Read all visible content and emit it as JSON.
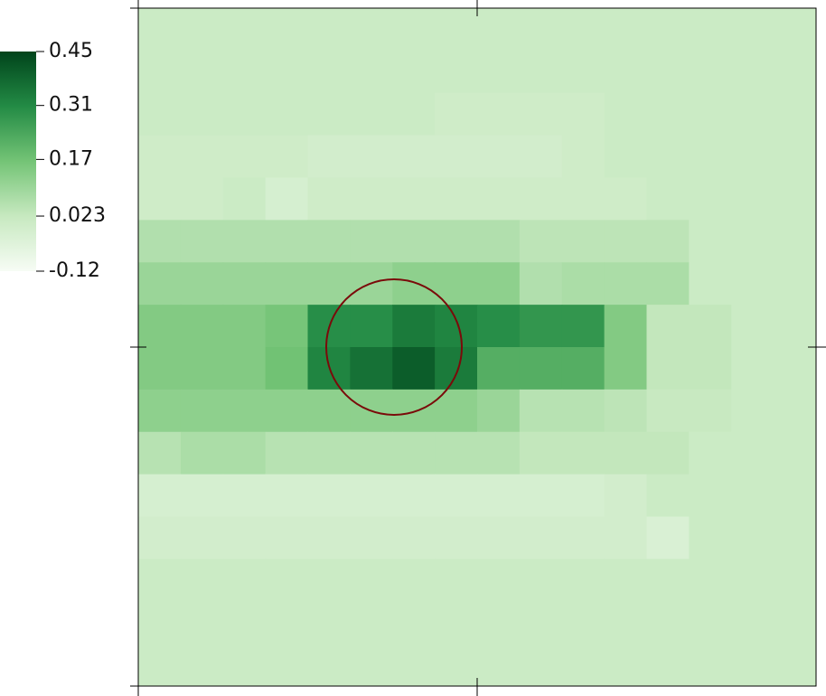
{
  "chart_data": {
    "type": "heatmap",
    "colorscale": [
      "#f7fcf5",
      "#c7e9c0",
      "#74c476",
      "#238b45",
      "#00441b"
    ],
    "clim": [
      -0.12,
      0.45
    ],
    "cticks": [
      0.45,
      0.31,
      0.17,
      0.023,
      -0.12
    ],
    "z": [
      [
        0.01,
        0.01,
        0.01,
        0.01,
        0.01,
        0.01,
        0.01,
        0.01,
        0.01,
        0.01,
        0.01,
        0.01,
        0.01,
        0.01,
        0.01,
        0.01
      ],
      [
        0.01,
        0.01,
        0.01,
        0.01,
        0.01,
        0.01,
        0.01,
        0.01,
        0.01,
        0.01,
        0.01,
        0.01,
        0.01,
        0.01,
        0.01,
        0.01
      ],
      [
        0.01,
        0.01,
        0.01,
        0.01,
        0.01,
        0.01,
        0.01,
        0.0,
        0.0,
        0.0,
        0.0,
        0.01,
        0.01,
        0.01,
        0.01,
        0.01
      ],
      [
        0.0,
        0.0,
        0.0,
        0.0,
        -0.01,
        -0.01,
        -0.01,
        -0.01,
        -0.01,
        -0.01,
        0.0,
        0.01,
        0.01,
        0.01,
        0.01,
        0.01
      ],
      [
        0.0,
        0.0,
        0.01,
        -0.02,
        0.0,
        0.0,
        0.0,
        0.0,
        0.0,
        0.0,
        0.0,
        0.0,
        0.01,
        0.01,
        0.01,
        0.01
      ],
      [
        0.06,
        0.06,
        0.06,
        0.06,
        0.06,
        0.06,
        0.06,
        0.06,
        0.06,
        0.04,
        0.04,
        0.04,
        0.04,
        0.01,
        0.01,
        0.01
      ],
      [
        0.1,
        0.1,
        0.1,
        0.1,
        0.1,
        0.1,
        0.12,
        0.12,
        0.12,
        0.06,
        0.07,
        0.07,
        0.07,
        0.01,
        0.01,
        0.01
      ],
      [
        0.14,
        0.14,
        0.14,
        0.16,
        0.3,
        0.3,
        0.34,
        0.32,
        0.3,
        0.28,
        0.28,
        0.14,
        0.03,
        0.03,
        0.01,
        0.01
      ],
      [
        0.14,
        0.14,
        0.14,
        0.17,
        0.32,
        0.36,
        0.4,
        0.34,
        0.22,
        0.22,
        0.22,
        0.14,
        0.03,
        0.03,
        0.01,
        0.01
      ],
      [
        0.12,
        0.12,
        0.12,
        0.12,
        0.12,
        0.12,
        0.12,
        0.12,
        0.1,
        0.05,
        0.05,
        0.04,
        0.02,
        0.02,
        0.01,
        0.01
      ],
      [
        0.05,
        0.07,
        0.07,
        0.05,
        0.05,
        0.05,
        0.05,
        0.05,
        0.05,
        0.03,
        0.03,
        0.03,
        0.03,
        0.01,
        0.01,
        0.01
      ],
      [
        -0.02,
        -0.02,
        -0.02,
        -0.02,
        -0.02,
        -0.02,
        -0.02,
        -0.02,
        -0.02,
        -0.02,
        -0.02,
        -0.01,
        0.01,
        0.01,
        0.01,
        0.01
      ],
      [
        -0.01,
        -0.01,
        -0.01,
        -0.01,
        -0.01,
        -0.01,
        -0.01,
        -0.01,
        -0.01,
        -0.01,
        -0.01,
        -0.01,
        -0.03,
        0.01,
        0.01,
        0.01
      ],
      [
        0.01,
        0.01,
        0.01,
        0.01,
        0.01,
        0.01,
        0.01,
        0.01,
        0.01,
        0.01,
        0.01,
        0.01,
        0.01,
        0.01,
        0.01,
        0.01
      ],
      [
        0.01,
        0.01,
        0.01,
        0.01,
        0.01,
        0.01,
        0.01,
        0.01,
        0.01,
        0.01,
        0.01,
        0.01,
        0.01,
        0.01,
        0.01,
        0.01
      ],
      [
        0.01,
        0.01,
        0.01,
        0.01,
        0.01,
        0.01,
        0.01,
        0.01,
        0.01,
        0.01,
        0.01,
        0.01,
        0.01,
        0.01,
        0.01,
        0.01
      ]
    ]
  }
}
